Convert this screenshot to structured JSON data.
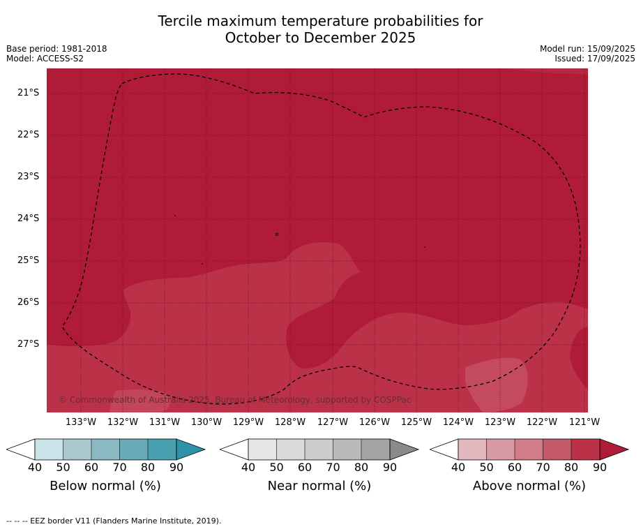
{
  "title": {
    "line1": "Tercile maximum temperature probabilities for",
    "line2": "October to December 2025"
  },
  "meta": {
    "base_period": "Base period: 1981-2018",
    "model": "Model: ACCESS-S2",
    "model_run": "Model run: 15/09/2025",
    "issued": "Issued: 17/09/2025"
  },
  "map": {
    "latitude_labels": [
      "21°S",
      "22°S",
      "23°S",
      "24°S",
      "25°S",
      "26°S",
      "27°S"
    ],
    "longitude_labels": [
      "133°W",
      "132°W",
      "131°W",
      "130°W",
      "129°W",
      "128°W",
      "127°W",
      "126°W",
      "125°W",
      "124°W",
      "123°W",
      "122°W",
      "121°W"
    ],
    "copyright": "© Commonwealth of Australia 2025, Bureau of Meteorology, supported by COSPPac",
    "colors": {
      "above_90": "#b01c38",
      "above_80": "#bb3148",
      "above_70": "#c44b5f",
      "grid": "#5a1020",
      "eez_border": "#000000"
    }
  },
  "legends": [
    {
      "id": "below",
      "title": "Below normal (%)",
      "ticks": [
        "40",
        "50",
        "60",
        "70",
        "80",
        "90"
      ],
      "colors": [
        "#c9e3e8",
        "#aac9cf",
        "#8ab8c3",
        "#6aaab8",
        "#49a0b0",
        "#2e93a6"
      ]
    },
    {
      "id": "near",
      "title": "Near normal (%)",
      "ticks": [
        "40",
        "50",
        "60",
        "70",
        "80",
        "90"
      ],
      "colors": [
        "#e6e6e6",
        "#dadada",
        "#cccccc",
        "#bababa",
        "#a4a4a4",
        "#8a8a8a"
      ]
    },
    {
      "id": "above",
      "title": "Above normal (%)",
      "ticks": [
        "40",
        "50",
        "60",
        "70",
        "80",
        "90"
      ],
      "colors": [
        "#e2b8be",
        "#d89aa3",
        "#d07d87",
        "#c4596a",
        "#bb3148",
        "#b01c38"
      ]
    }
  ],
  "footnote": "--  --  -- EEZ border V11 (Flanders Marine Institute, 2019)."
}
